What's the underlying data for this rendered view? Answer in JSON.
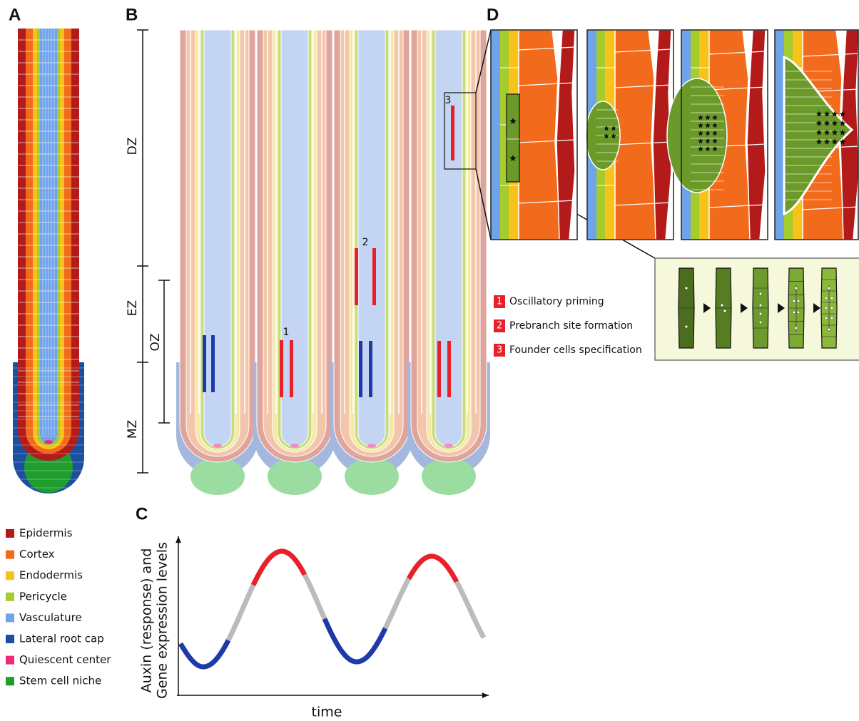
{
  "panel_a": {
    "label": "A",
    "legend": [
      {
        "name": "Epidermis",
        "color": "#b31b1b"
      },
      {
        "name": "Cortex",
        "color": "#f26b1d"
      },
      {
        "name": "Endodermis",
        "color": "#f7c31a"
      },
      {
        "name": "Pericycle",
        "color": "#a5cc2e"
      },
      {
        "name": "Vasculature",
        "color": "#6fa3ea"
      },
      {
        "name": "Lateral root cap",
        "color": "#1d4fa0"
      },
      {
        "name": "Quiescent center",
        "color": "#ee2b7b"
      },
      {
        "name": "Stem cell niche",
        "color": "#1f9e2e"
      }
    ]
  },
  "panel_b": {
    "label": "B",
    "zones": [
      "DZ",
      "EZ",
      "OZ",
      "MZ"
    ],
    "markers": [
      "1",
      "2",
      "3"
    ]
  },
  "panel_c": {
    "label": "C",
    "y_label": [
      "Auxin (response) and",
      "Gene expression levels"
    ],
    "x_label": "time"
  },
  "panel_d": {
    "label": "D",
    "steps": [
      {
        "number": "1",
        "text": "Oscillatory priming"
      },
      {
        "number": "2",
        "text": "Prebranch site formation"
      },
      {
        "number": "3",
        "text": "Founder cells specification"
      }
    ]
  }
}
